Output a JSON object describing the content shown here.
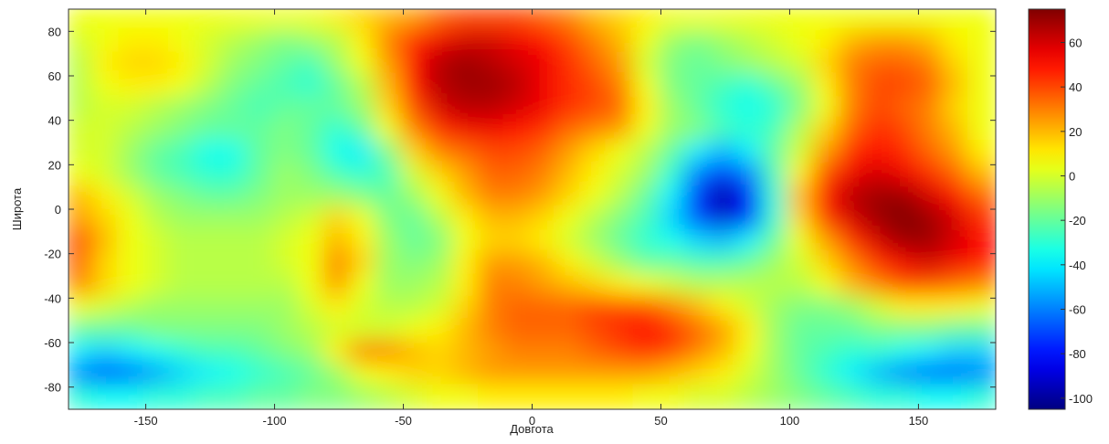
{
  "chart_data": {
    "type": "heatmap",
    "title": "",
    "xlabel": "Довгота",
    "ylabel": "Широта",
    "xlim": [
      -180,
      180
    ],
    "ylim": [
      -90,
      90
    ],
    "xticks": [
      -150,
      -100,
      -50,
      0,
      50,
      100,
      150
    ],
    "yticks": [
      80,
      60,
      40,
      20,
      0,
      -20,
      -40,
      -60,
      -80
    ],
    "grid": false,
    "colormap": "jet",
    "colorbar": {
      "range": [
        -105,
        75
      ],
      "ticks": [
        60,
        40,
        20,
        0,
        -20,
        -40,
        -60,
        -80,
        -100
      ],
      "location": "right"
    },
    "x": [
      -175,
      -165,
      -155,
      -145,
      -135,
      -125,
      -115,
      -105,
      -95,
      -85,
      -75,
      -65,
      -55,
      -45,
      -35,
      -25,
      -15,
      -5,
      5,
      15,
      25,
      35,
      45,
      55,
      65,
      75,
      85,
      95,
      105,
      115,
      125,
      135,
      145,
      155,
      165,
      175
    ],
    "y": [
      85,
      75,
      65,
      55,
      45,
      35,
      25,
      15,
      5,
      -5,
      -15,
      -25,
      -35,
      -45,
      -55,
      -65,
      -75,
      -85
    ],
    "values": [
      [
        5,
        5,
        5,
        5,
        5,
        5,
        5,
        5,
        5,
        5,
        10,
        15,
        20,
        25,
        35,
        40,
        40,
        40,
        35,
        30,
        20,
        15,
        10,
        5,
        5,
        5,
        5,
        5,
        5,
        5,
        5,
        5,
        5,
        5,
        5,
        5
      ],
      [
        0,
        5,
        10,
        10,
        5,
        0,
        -5,
        -10,
        -15,
        -10,
        -5,
        10,
        30,
        45,
        55,
        60,
        60,
        55,
        50,
        40,
        30,
        20,
        5,
        -10,
        -15,
        -10,
        -5,
        0,
        5,
        10,
        20,
        25,
        25,
        20,
        10,
        5
      ],
      [
        -5,
        10,
        15,
        15,
        10,
        0,
        -10,
        -15,
        -20,
        -25,
        -10,
        5,
        25,
        50,
        65,
        70,
        65,
        60,
        55,
        45,
        35,
        25,
        0,
        -15,
        -20,
        -15,
        -10,
        -5,
        0,
        15,
        30,
        35,
        35,
        30,
        15,
        5
      ],
      [
        -5,
        5,
        10,
        10,
        5,
        -5,
        -15,
        -20,
        -25,
        -30,
        -20,
        -5,
        20,
        50,
        65,
        70,
        70,
        65,
        55,
        45,
        40,
        30,
        5,
        -15,
        -20,
        -25,
        -30,
        -20,
        -10,
        10,
        30,
        40,
        40,
        35,
        20,
        5
      ],
      [
        -5,
        0,
        0,
        -5,
        -10,
        -15,
        -20,
        -25,
        -20,
        -20,
        -20,
        -10,
        15,
        40,
        60,
        65,
        65,
        60,
        55,
        45,
        40,
        35,
        10,
        -10,
        -20,
        -30,
        -35,
        -30,
        -15,
        5,
        30,
        40,
        35,
        30,
        15,
        5
      ],
      [
        0,
        0,
        -5,
        -10,
        -15,
        -20,
        -20,
        -20,
        -15,
        -20,
        -30,
        -20,
        5,
        30,
        45,
        55,
        55,
        50,
        45,
        35,
        30,
        25,
        5,
        -10,
        -15,
        -25,
        -30,
        -25,
        -5,
        15,
        35,
        45,
        40,
        30,
        20,
        5
      ],
      [
        0,
        0,
        -10,
        -20,
        -25,
        -35,
        -35,
        -20,
        -15,
        -20,
        -35,
        -40,
        -15,
        15,
        30,
        35,
        40,
        40,
        35,
        25,
        15,
        5,
        -5,
        -20,
        -40,
        -50,
        -40,
        -20,
        0,
        25,
        45,
        50,
        45,
        35,
        25,
        10
      ],
      [
        5,
        0,
        -10,
        -20,
        -25,
        -30,
        -30,
        -20,
        -10,
        -15,
        -25,
        -30,
        -25,
        0,
        15,
        25,
        35,
        35,
        30,
        20,
        10,
        0,
        -10,
        -30,
        -60,
        -75,
        -60,
        -25,
        10,
        40,
        55,
        60,
        55,
        45,
        35,
        20
      ],
      [
        20,
        10,
        0,
        -10,
        -15,
        -20,
        -20,
        -15,
        -10,
        -10,
        -10,
        -15,
        -20,
        -10,
        5,
        20,
        30,
        30,
        25,
        15,
        5,
        -5,
        -20,
        -40,
        -75,
        -100,
        -80,
        -30,
        20,
        50,
        65,
        70,
        70,
        60,
        50,
        35
      ],
      [
        25,
        15,
        5,
        -5,
        -10,
        -10,
        -10,
        -10,
        -5,
        0,
        15,
        5,
        -15,
        -20,
        -5,
        10,
        20,
        20,
        15,
        5,
        -5,
        -15,
        -25,
        -45,
        -70,
        -90,
        -75,
        -30,
        15,
        45,
        60,
        70,
        75,
        70,
        60,
        45
      ],
      [
        40,
        20,
        5,
        0,
        -5,
        -5,
        -5,
        -5,
        0,
        5,
        20,
        10,
        -10,
        -20,
        -15,
        5,
        15,
        15,
        10,
        0,
        -10,
        -20,
        -30,
        -35,
        -45,
        -50,
        -40,
        -20,
        5,
        25,
        45,
        60,
        70,
        70,
        60,
        50
      ],
      [
        35,
        15,
        5,
        0,
        -5,
        -5,
        -5,
        -5,
        0,
        5,
        30,
        15,
        -10,
        -15,
        -10,
        10,
        25,
        25,
        20,
        10,
        0,
        -10,
        -20,
        -20,
        -25,
        -25,
        -20,
        -10,
        0,
        15,
        30,
        45,
        55,
        60,
        55,
        50
      ],
      [
        30,
        15,
        5,
        0,
        -5,
        -5,
        -5,
        -5,
        -5,
        5,
        25,
        5,
        -10,
        -10,
        -5,
        10,
        30,
        30,
        25,
        20,
        15,
        10,
        5,
        0,
        -5,
        -5,
        -5,
        -5,
        -5,
        5,
        20,
        30,
        40,
        40,
        35,
        30
      ],
      [
        5,
        0,
        -5,
        -10,
        -10,
        -10,
        -10,
        -10,
        -10,
        0,
        10,
        0,
        -5,
        -5,
        0,
        15,
        30,
        35,
        35,
        35,
        40,
        40,
        40,
        30,
        20,
        10,
        0,
        -10,
        -15,
        -15,
        -10,
        0,
        10,
        10,
        10,
        5
      ],
      [
        -20,
        -20,
        -20,
        -15,
        -15,
        -15,
        -15,
        -15,
        -10,
        -5,
        0,
        0,
        0,
        5,
        10,
        20,
        30,
        35,
        35,
        35,
        40,
        45,
        50,
        45,
        35,
        25,
        10,
        -10,
        -20,
        -20,
        -20,
        -15,
        -15,
        -15,
        -20,
        -20
      ],
      [
        -40,
        -45,
        -40,
        -35,
        -30,
        -25,
        -25,
        -20,
        -15,
        -10,
        10,
        30,
        30,
        20,
        15,
        20,
        25,
        30,
        30,
        30,
        35,
        40,
        45,
        40,
        30,
        20,
        5,
        -10,
        -20,
        -25,
        -30,
        -30,
        -35,
        -40,
        -45,
        -45
      ],
      [
        -60,
        -70,
        -65,
        -55,
        -45,
        -40,
        -35,
        -30,
        -25,
        -20,
        -10,
        5,
        10,
        15,
        15,
        20,
        25,
        25,
        25,
        25,
        25,
        25,
        25,
        20,
        15,
        10,
        0,
        -10,
        -20,
        -30,
        -40,
        -50,
        -60,
        -65,
        -65,
        -60
      ],
      [
        -30,
        -35,
        -35,
        -30,
        -30,
        -25,
        -25,
        -20,
        -20,
        -15,
        -15,
        -10,
        -5,
        0,
        5,
        5,
        10,
        10,
        10,
        10,
        10,
        10,
        5,
        5,
        0,
        0,
        -5,
        -10,
        -15,
        -20,
        -25,
        -30,
        -30,
        -35,
        -35,
        -30
      ]
    ]
  }
}
